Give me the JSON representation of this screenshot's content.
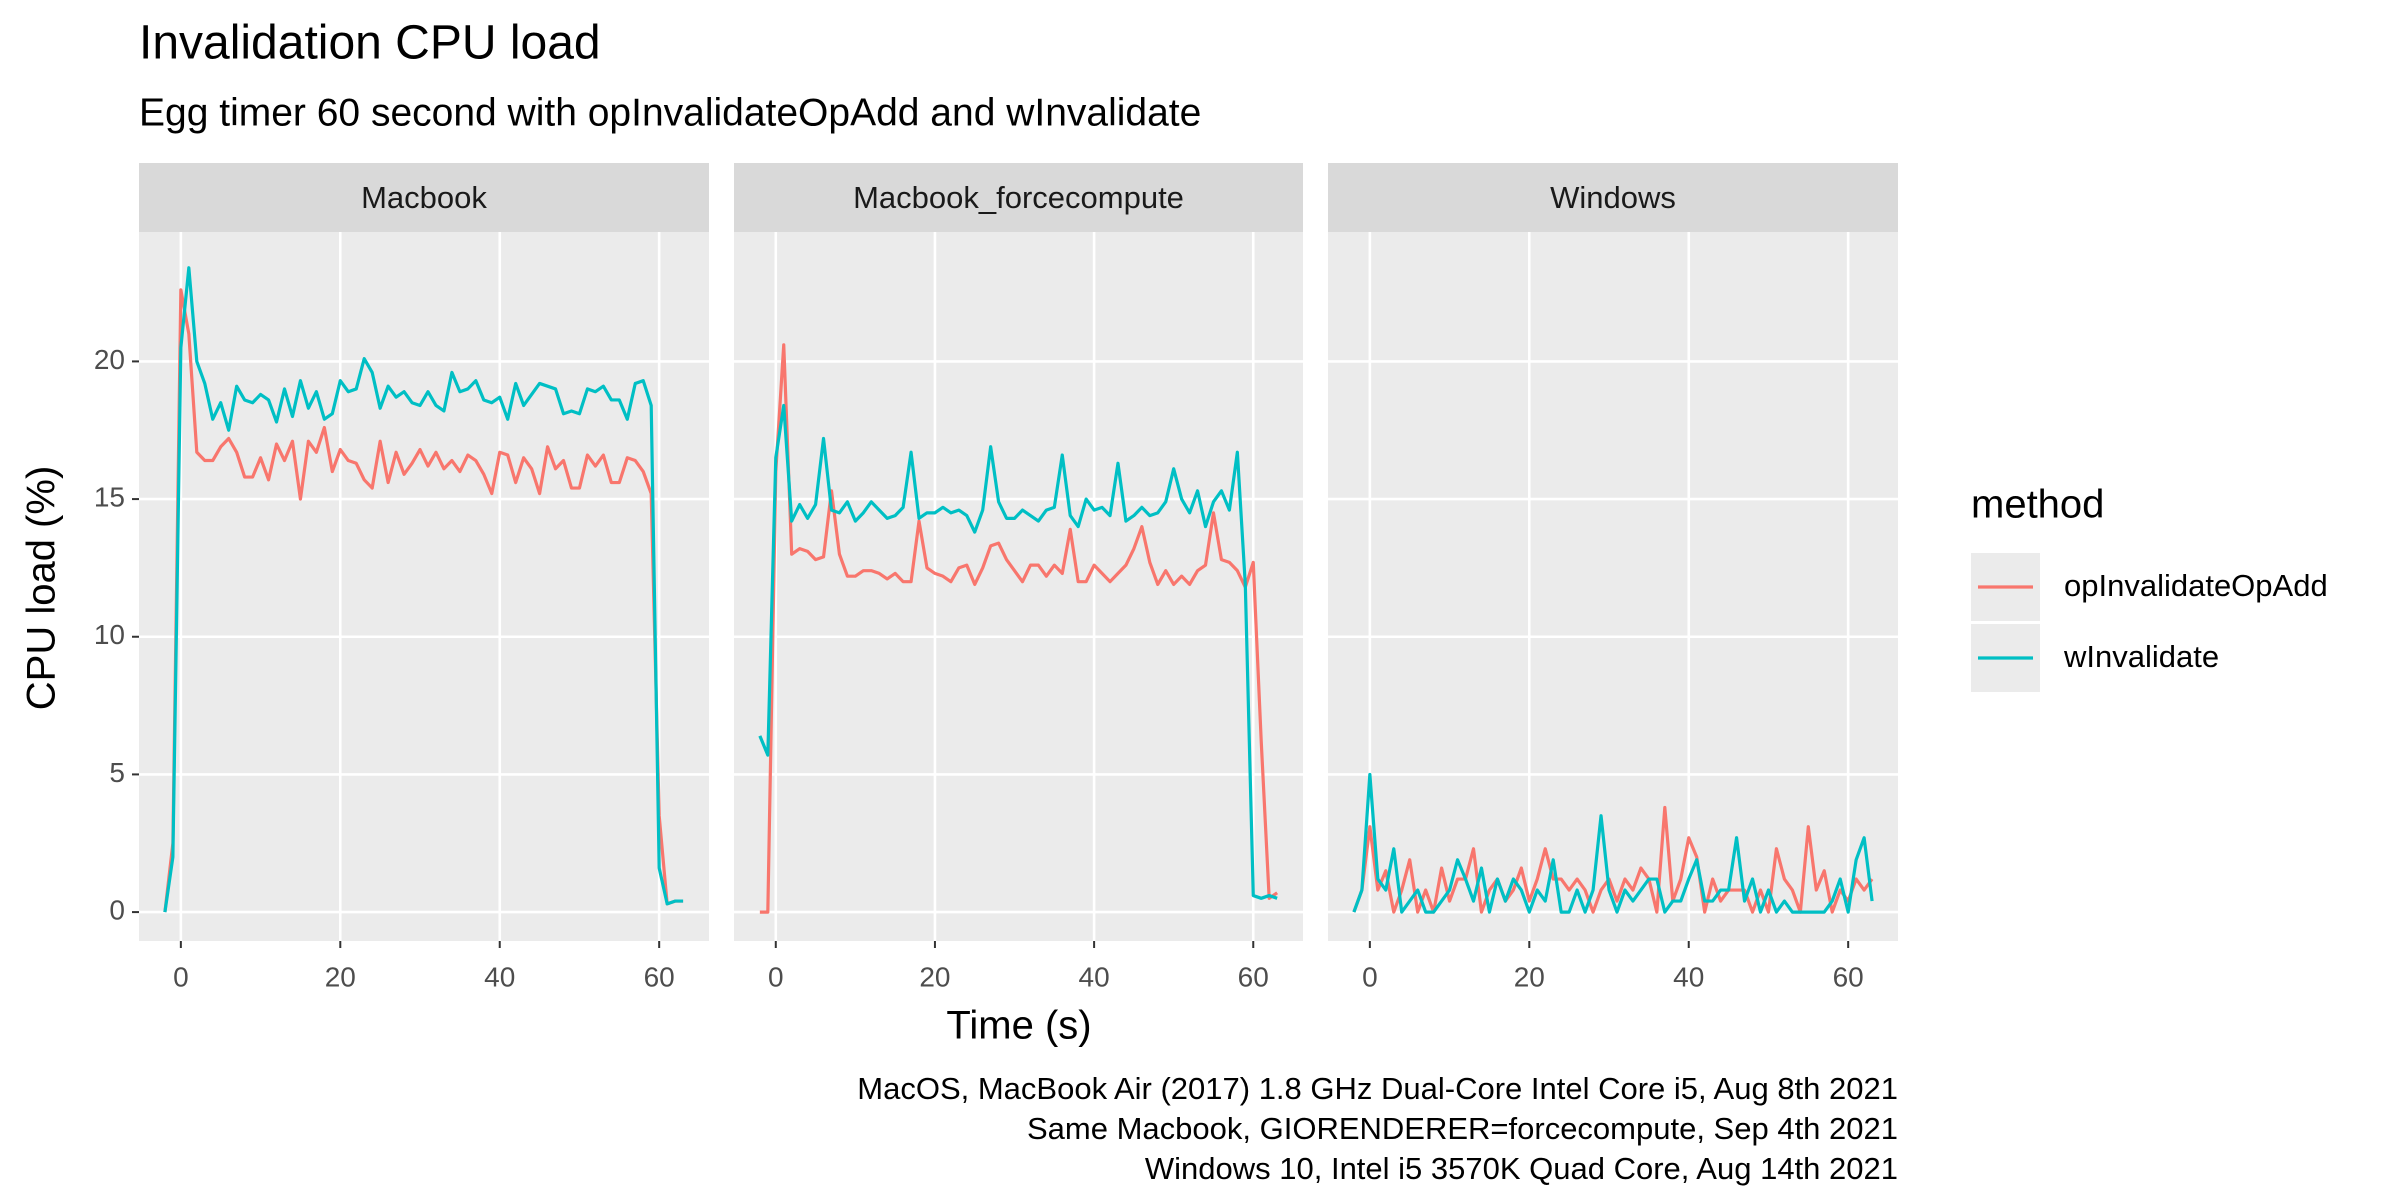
{
  "chart_data": {
    "type": "line",
    "title": "Invalidation CPU load",
    "subtitle": "Egg timer 60 second with opInvalidateOpAdd and wInvalidate",
    "x_label": "Time (s)",
    "y_label": "CPU load (%)",
    "legend_title": "method",
    "caption": [
      "MacOS, MacBook Air (2017) 1.8 GHz Dual-Core Intel Core i5, Aug 8th 2021",
      "Same Macbook, GIORENDERER=forcecompute, Sep 4th 2021",
      "Windows 10, Intel i5 3570K Quad Core, Aug 14th 2021"
    ],
    "x": [
      -2,
      -1,
      0,
      1,
      2,
      3,
      4,
      5,
      6,
      7,
      8,
      9,
      10,
      11,
      12,
      13,
      14,
      15,
      16,
      17,
      18,
      19,
      20,
      21,
      22,
      23,
      24,
      25,
      26,
      27,
      28,
      29,
      30,
      31,
      32,
      33,
      34,
      35,
      36,
      37,
      38,
      39,
      40,
      41,
      42,
      43,
      44,
      45,
      46,
      47,
      48,
      49,
      50,
      51,
      52,
      53,
      54,
      55,
      56,
      57,
      58,
      59,
      60,
      61,
      62,
      63
    ],
    "xlim": [
      -5.25,
      66.25
    ],
    "xticks": [
      0,
      20,
      40,
      60
    ],
    "ylim": [
      -1.05,
      24.7
    ],
    "yticks": [
      0,
      5,
      10,
      15,
      20
    ],
    "grid": true,
    "facets": [
      {
        "name": "Macbook",
        "series": [
          {
            "name": "opInvalidateOpAdd",
            "color": "#F8766D",
            "values": [
              0,
              2.5,
              22.6,
              21,
              16.7,
              16.4,
              16.4,
              16.9,
              17.2,
              16.7,
              15.8,
              15.8,
              16.5,
              15.7,
              17.0,
              16.4,
              17.1,
              15.0,
              17.1,
              16.7,
              17.6,
              16.0,
              16.8,
              16.4,
              16.3,
              15.7,
              15.4,
              17.1,
              15.6,
              16.7,
              15.9,
              16.3,
              16.8,
              16.2,
              16.7,
              16.1,
              16.4,
              16.0,
              16.6,
              16.4,
              15.9,
              15.2,
              16.7,
              16.6,
              15.6,
              16.5,
              16.1,
              15.2,
              16.9,
              16.1,
              16.4,
              15.4,
              15.4,
              16.6,
              16.2,
              16.6,
              15.6,
              15.6,
              16.5,
              16.4,
              16.0,
              15.2,
              3.5,
              0.3,
              0.4,
              0.4
            ]
          },
          {
            "name": "wInvalidate",
            "color": "#00BFC4",
            "values": [
              0,
              2,
              20.5,
              23.4,
              20,
              19.2,
              17.9,
              18.5,
              17.5,
              19.1,
              18.6,
              18.5,
              18.8,
              18.6,
              17.8,
              19.0,
              18.0,
              19.3,
              18.3,
              18.9,
              17.9,
              18.1,
              19.3,
              18.9,
              19.0,
              20.1,
              19.6,
              18.3,
              19.1,
              18.7,
              18.9,
              18.5,
              18.4,
              18.9,
              18.4,
              18.2,
              19.6,
              18.9,
              19.0,
              19.3,
              18.6,
              18.5,
              18.7,
              17.9,
              19.2,
              18.4,
              18.8,
              19.2,
              19.1,
              19.0,
              18.1,
              18.2,
              18.1,
              19.0,
              18.9,
              19.1,
              18.6,
              18.6,
              17.9,
              19.2,
              19.3,
              18.4,
              1.6,
              0.3,
              0.4,
              0.4
            ]
          }
        ]
      },
      {
        "name": "Macbook_forcecompute",
        "series": [
          {
            "name": "opInvalidateOpAdd",
            "color": "#F8766D",
            "values": [
              0,
              0,
              16,
              20.6,
              13,
              13.2,
              13.1,
              12.8,
              12.9,
              15.3,
              13,
              12.2,
              12.2,
              12.4,
              12.4,
              12.3,
              12.1,
              12.3,
              12.0,
              12.0,
              14.2,
              12.5,
              12.3,
              12.2,
              12.0,
              12.5,
              12.6,
              11.9,
              12.5,
              13.3,
              13.4,
              12.8,
              12.4,
              12.0,
              12.6,
              12.6,
              12.2,
              12.6,
              12.3,
              13.9,
              12.0,
              12.0,
              12.6,
              12.3,
              12.0,
              12.3,
              12.6,
              13.2,
              14.0,
              12.7,
              11.9,
              12.4,
              11.9,
              12.2,
              11.9,
              12.4,
              12.6,
              14.5,
              12.8,
              12.7,
              12.4,
              11.8,
              12.7,
              6.2,
              0.5,
              0.7
            ]
          },
          {
            "name": "wInvalidate",
            "color": "#00BFC4",
            "values": [
              6.4,
              5.7,
              16.5,
              18.4,
              14.2,
              14.8,
              14.3,
              14.8,
              17.2,
              14.6,
              14.5,
              14.9,
              14.2,
              14.5,
              14.9,
              14.6,
              14.3,
              14.4,
              14.7,
              16.7,
              14.3,
              14.5,
              14.5,
              14.7,
              14.5,
              14.6,
              14.4,
              13.8,
              14.6,
              16.9,
              14.9,
              14.3,
              14.3,
              14.6,
              14.4,
              14.2,
              14.6,
              14.7,
              16.6,
              14.4,
              14.0,
              15.0,
              14.6,
              14.7,
              14.4,
              16.3,
              14.2,
              14.4,
              14.7,
              14.4,
              14.5,
              14.9,
              16.1,
              15.0,
              14.5,
              15.3,
              14.0,
              14.9,
              15.3,
              14.6,
              16.7,
              11.9,
              0.6,
              0.5,
              0.6,
              0.5
            ]
          }
        ]
      },
      {
        "name": "Windows",
        "series": [
          {
            "name": "opInvalidateOpAdd",
            "color": "#F8766D",
            "values": [
              0,
              0.8,
              3.1,
              0.8,
              1.5,
              0,
              0.8,
              1.9,
              0,
              0.8,
              0,
              1.6,
              0.4,
              1.2,
              1.2,
              2.3,
              0,
              0.8,
              1.2,
              0.4,
              0.8,
              1.6,
              0.4,
              1.2,
              2.3,
              1.2,
              1.2,
              0.8,
              1.2,
              0.8,
              0,
              0.8,
              1.2,
              0.4,
              1.2,
              0.8,
              1.6,
              1.2,
              0,
              3.8,
              0.4,
              1.2,
              2.7,
              2.0,
              0,
              1.2,
              0.4,
              0.8,
              0.8,
              0.8,
              0,
              0.8,
              0,
              2.3,
              1.2,
              0.8,
              0,
              3.1,
              0.8,
              1.5,
              0,
              0.8,
              0.4,
              1.2,
              0.8,
              1.2
            ]
          },
          {
            "name": "wInvalidate",
            "color": "#00BFC4",
            "values": [
              0,
              0.8,
              5.0,
              1.2,
              0.8,
              2.3,
              0,
              0.4,
              0.8,
              0,
              0,
              0.4,
              0.8,
              1.9,
              1.2,
              0.4,
              1.6,
              0,
              1.2,
              0.4,
              1.2,
              0.8,
              0,
              0.8,
              0.4,
              1.9,
              0,
              0,
              0.8,
              0,
              0.8,
              3.5,
              0.8,
              0,
              0.8,
              0.4,
              0.8,
              1.2,
              1.2,
              0,
              0.4,
              0.4,
              1.2,
              1.9,
              0.4,
              0.4,
              0.8,
              0.8,
              2.7,
              0.4,
              1.2,
              0,
              0.8,
              0,
              0.4,
              0,
              0,
              0,
              0,
              0,
              0.4,
              1.2,
              0,
              1.9,
              2.7,
              0.4
            ]
          }
        ]
      }
    ]
  }
}
